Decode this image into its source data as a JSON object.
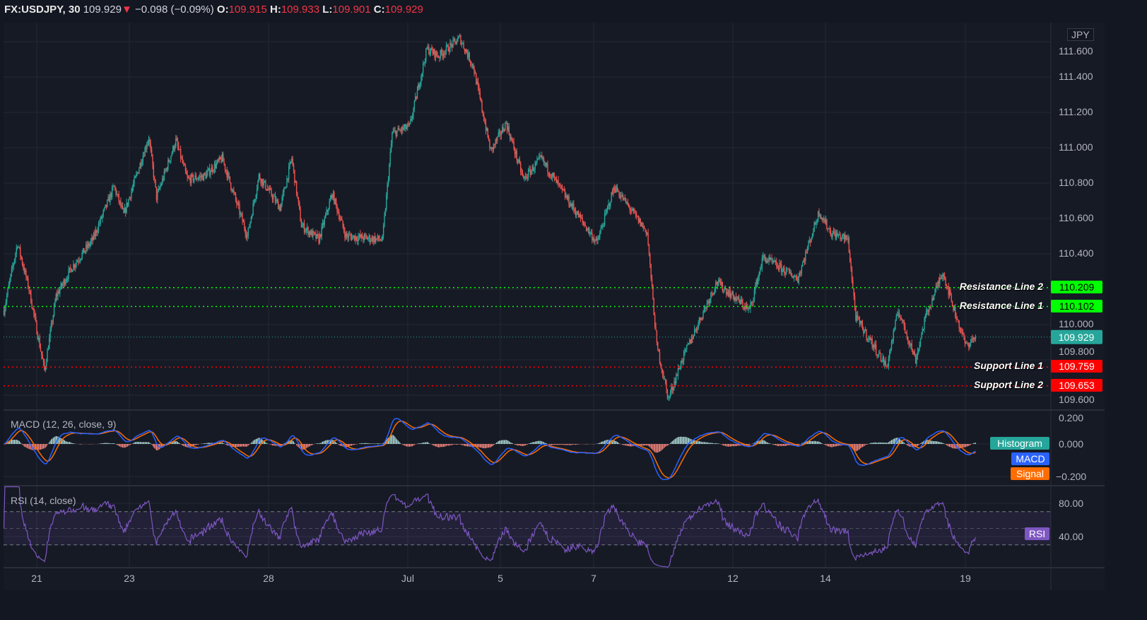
{
  "header": {
    "symbol": "FX:USDJPY, 30",
    "last": "109.929",
    "change": "−0.098 (−0.09%)",
    "o_label": "O:",
    "o": "109.915",
    "h_label": "H:",
    "h": "109.933",
    "l_label": "L:",
    "l": "109.901",
    "c_label": "C:",
    "c": "109.929"
  },
  "currency": "JPY",
  "colors": {
    "up": "#26a69a",
    "down": "#ef5350",
    "bg": "#131722",
    "pane": "#161a25",
    "grid": "#242832",
    "macd": "#2962ff",
    "signal": "#ff6d00",
    "rsi": "#7e57c2"
  },
  "price_axis": {
    "ticks": [
      "111.600",
      "111.400",
      "111.200",
      "111.000",
      "110.800",
      "110.600",
      "110.400",
      "110.000",
      "109.800",
      "109.600"
    ],
    "current": "109.929"
  },
  "levels": [
    {
      "name": "Resistance Line 2",
      "price": 110.209,
      "label": "110.209",
      "color": "#00ff00"
    },
    {
      "name": "Resistance Line 1",
      "price": 110.102,
      "label": "110.102",
      "color": "#00ff00"
    },
    {
      "name": "Support Line 1",
      "price": 109.759,
      "label": "109.759",
      "color": "#ff0000"
    },
    {
      "name": "Support Line 2",
      "price": 109.653,
      "label": "109.653",
      "color": "#ff0000"
    }
  ],
  "macd": {
    "title": "MACD (12, 26, close, 9)",
    "ticks": [
      "0.200",
      "0.000",
      "−0.200"
    ],
    "histogram": "Histogram",
    "macd": "MACD",
    "signal": "Signal"
  },
  "rsi": {
    "title": "RSI (14, close)",
    "ticks": [
      "80.00",
      "40.00"
    ],
    "label": "RSI",
    "upper": 70,
    "lower": 30
  },
  "time_axis": [
    "21",
    "23",
    "28",
    "Jul",
    "5",
    "7",
    "12",
    "14",
    "19"
  ],
  "chart_data": {
    "type": "candlestick",
    "interval": "30",
    "ylim": [
      109.55,
      111.65
    ],
    "approx_close_path": [
      [
        "Jun18 07:00",
        110.08
      ],
      [
        "Jun18 14:00",
        110.46
      ],
      [
        "Jun18 20:00",
        110.2
      ],
      [
        "Jun21 04:00",
        109.74
      ],
      [
        "Jun21 10:00",
        110.16
      ],
      [
        "Jun21 18:00",
        110.32
      ],
      [
        "Jun22 05:00",
        110.48
      ],
      [
        "Jun22 16:00",
        110.78
      ],
      [
        "Jun22 21:00",
        110.62
      ],
      [
        "Jun23 10:00",
        111.06
      ],
      [
        "Jun23 14:00",
        110.72
      ],
      [
        "Jun24 00:00",
        111.04
      ],
      [
        "Jun24 06:00",
        110.82
      ],
      [
        "Jun24 15:00",
        110.84
      ],
      [
        "Jun25 00:00",
        110.94
      ],
      [
        "Jun25 13:00",
        110.5
      ],
      [
        "Jun25 19:00",
        110.84
      ],
      [
        "Jun28 06:00",
        110.66
      ],
      [
        "Jun28 12:00",
        110.94
      ],
      [
        "Jun28 17:00",
        110.56
      ],
      [
        "Jun29 02:00",
        110.48
      ],
      [
        "Jun29 09:00",
        110.74
      ],
      [
        "Jun29 16:00",
        110.5
      ],
      [
        "Jun30 11:00",
        110.48
      ],
      [
        "Jun30 16:00",
        111.08
      ],
      [
        "Jul1 01:00",
        111.12
      ],
      [
        "Jul1 10:00",
        111.56
      ],
      [
        "Jul1 16:00",
        111.52
      ],
      [
        "Jul2 03:00",
        111.62
      ],
      [
        "Jul2 10:00",
        111.46
      ],
      [
        "Jul2 19:00",
        110.98
      ],
      [
        "Jul5 03:00",
        111.14
      ],
      [
        "Jul5 12:00",
        110.82
      ],
      [
        "Jul5 21:00",
        110.94
      ],
      [
        "Jul6 10:00",
        110.72
      ],
      [
        "Jul7 02:00",
        110.46
      ],
      [
        "Jul7 11:00",
        110.78
      ],
      [
        "Jul8 04:00",
        110.52
      ],
      [
        "Jul8 09:00",
        109.88
      ],
      [
        "Jul8 15:00",
        109.58
      ],
      [
        "Jul8 22:00",
        109.8
      ],
      [
        "Jul9 11:00",
        110.12
      ],
      [
        "Jul9 16:00",
        110.24
      ],
      [
        "Jul12 09:00",
        110.08
      ],
      [
        "Jul12 16:00",
        110.38
      ],
      [
        "Jul13 10:00",
        110.26
      ],
      [
        "Jul13 21:00",
        110.64
      ],
      [
        "Jul14 03:00",
        110.52
      ],
      [
        "Jul14 12:00",
        110.48
      ],
      [
        "Jul14 16:00",
        110.04
      ],
      [
        "Jul15 08:00",
        109.76
      ],
      [
        "Jul15 14:00",
        110.08
      ],
      [
        "Jul15 23:00",
        109.8
      ],
      [
        "Jul16 04:00",
        110.04
      ],
      [
        "Jul16 13:00",
        110.3
      ],
      [
        "Jul16 19:00",
        110.08
      ],
      [
        "Jul19 01:00",
        109.88
      ],
      [
        "Jul19 06:00",
        109.929
      ]
    ]
  }
}
